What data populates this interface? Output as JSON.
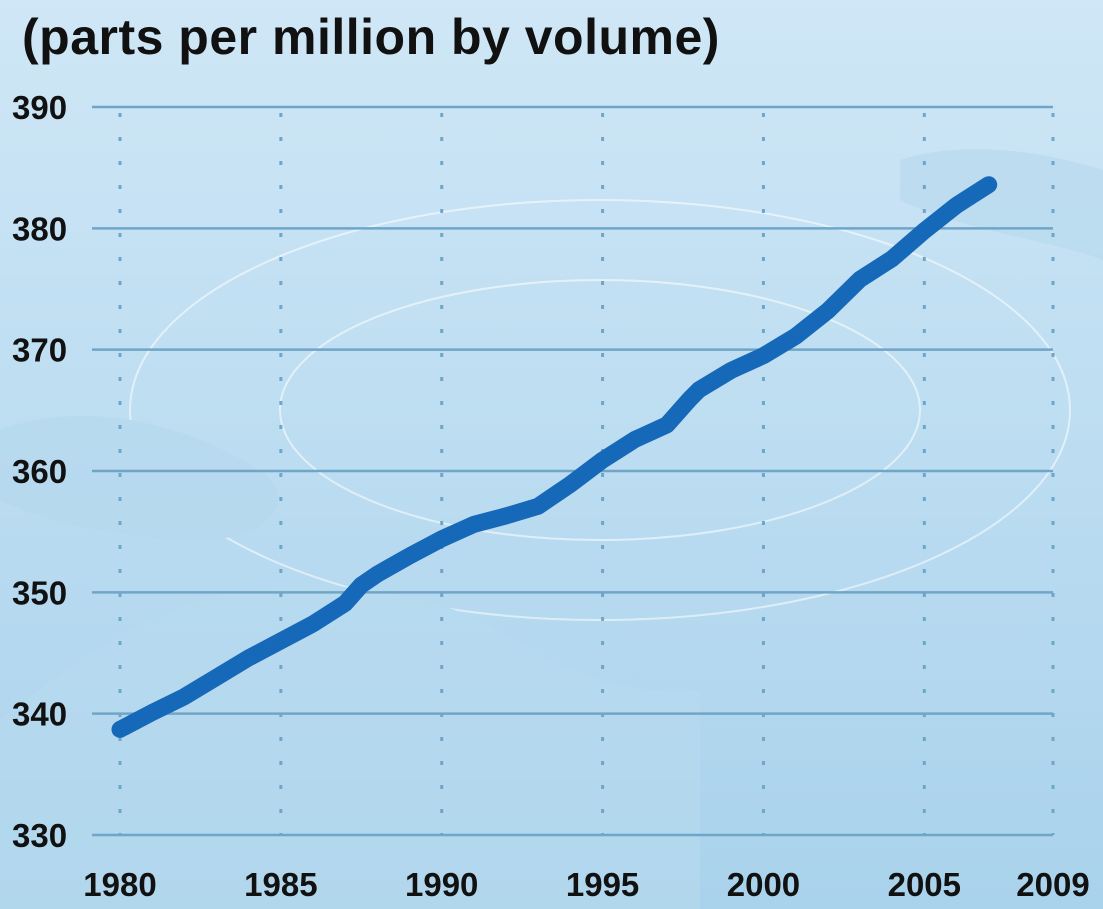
{
  "colors": {
    "background_top": "#cfe7f6",
    "background_bottom": "#a9d2ec",
    "grid": "#6fa6c8",
    "line": "#1668b8",
    "text": "#111111"
  },
  "chart_data": {
    "type": "line",
    "title": "(parts per million by volume)",
    "xlabel": "",
    "ylabel": "",
    "xlim": [
      1980,
      2009
    ],
    "ylim": [
      330,
      390
    ],
    "x_ticks": [
      1980,
      1985,
      1990,
      1995,
      2000,
      2005,
      2009
    ],
    "y_ticks": [
      330,
      340,
      350,
      360,
      370,
      380,
      390
    ],
    "grid": true,
    "series": [
      {
        "x": [
          1980,
          1981,
          1982,
          1983,
          1984,
          1985,
          1986,
          1987,
          1987.5,
          1988,
          1989,
          1990,
          1991,
          1992,
          1993,
          1994,
          1995,
          1996,
          1997,
          1997.7,
          1998,
          1999,
          2000,
          2001,
          2002,
          2003,
          2004,
          2005,
          2006,
          2007
        ],
        "y": [
          338.7,
          340.1,
          341.4,
          343.0,
          344.6,
          346.0,
          347.4,
          349.1,
          350.6,
          351.5,
          353.0,
          354.4,
          355.6,
          356.3,
          357.1,
          358.9,
          360.9,
          362.6,
          363.8,
          365.9,
          366.7,
          368.3,
          369.5,
          371.1,
          373.2,
          375.8,
          377.5,
          379.8,
          381.9,
          383.6
        ]
      }
    ]
  }
}
